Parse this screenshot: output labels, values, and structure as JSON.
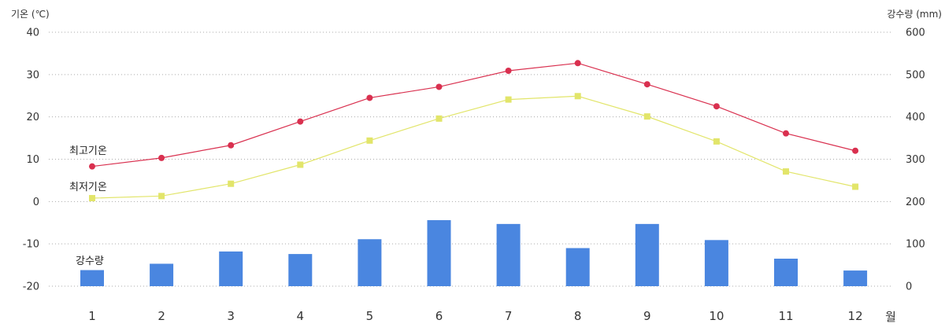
{
  "chart_data": {
    "type": "bar+line",
    "left_axis": {
      "title": "기온 (℃)",
      "range": [
        -20,
        40
      ],
      "ticks": [
        "40",
        "30",
        "20",
        "10",
        "0",
        "-10",
        "-20"
      ]
    },
    "right_axis": {
      "title": "강수량 (mm)",
      "range": [
        0,
        600
      ],
      "ticks": [
        "600",
        "500",
        "400",
        "300",
        "200",
        "100",
        "0"
      ]
    },
    "x_unit": "월",
    "categories": [
      "1",
      "2",
      "3",
      "4",
      "5",
      "6",
      "7",
      "8",
      "9",
      "10",
      "11",
      "12"
    ],
    "grid": "horizontal dotted",
    "series": [
      {
        "name": "최고기온",
        "type": "line",
        "axis": "left",
        "color": "#d9304f",
        "marker": "circle",
        "values": [
          8.3,
          10.3,
          13.3,
          18.9,
          24.5,
          27.1,
          30.9,
          32.7,
          27.7,
          22.5,
          16.1,
          12.0
        ]
      },
      {
        "name": "최저기온",
        "type": "line",
        "axis": "left",
        "color": "#e2e56a",
        "marker": "square",
        "values": [
          0.8,
          1.3,
          4.2,
          8.7,
          14.4,
          19.6,
          24.1,
          24.9,
          20.1,
          14.2,
          7.1,
          3.5
        ]
      },
      {
        "name": "강수량",
        "type": "bar",
        "axis": "right",
        "color": "#4a86e0",
        "values": [
          38,
          53,
          82,
          76,
          111,
          156,
          147,
          90,
          147,
          109,
          65,
          37
        ]
      }
    ]
  }
}
